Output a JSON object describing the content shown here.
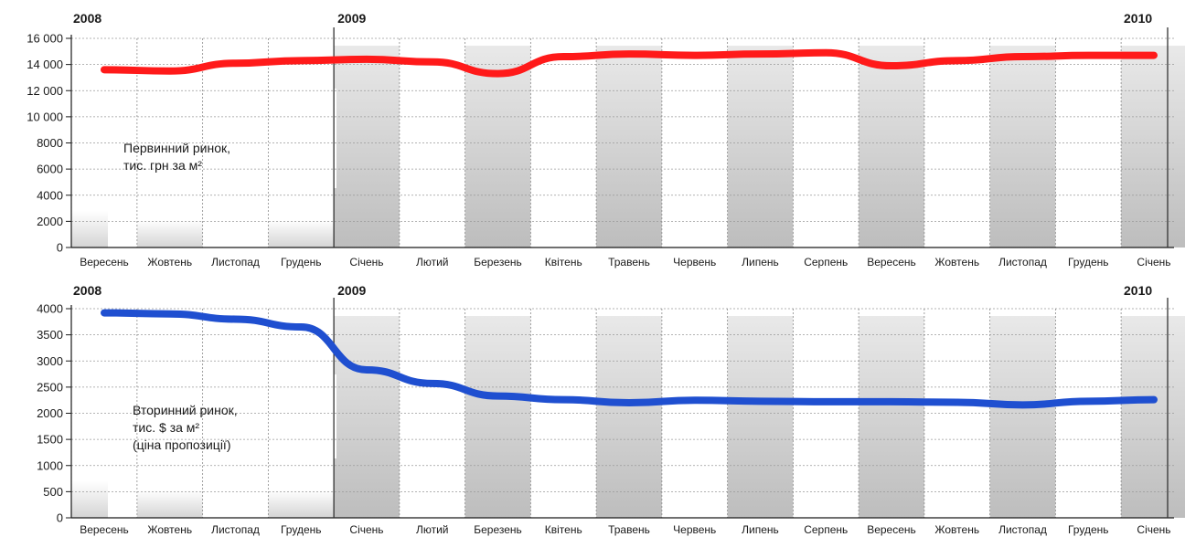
{
  "chart_data": [
    {
      "type": "line",
      "categories": [
        "Вересень",
        "Жовтень",
        "Листопад",
        "Грудень",
        "Січень",
        "Лютий",
        "Березень",
        "Квітень",
        "Травень",
        "Червень",
        "Липень",
        "Серпень",
        "Вересень",
        "Жовтень",
        "Листопад",
        "Грудень",
        "Січень"
      ],
      "year_labels": [
        {
          "label": "2008",
          "category_index": 0
        },
        {
          "label": "2009",
          "category_index": 4
        },
        {
          "label": "2010",
          "category_index": 16
        }
      ],
      "series": [
        {
          "values": [
            13600,
            13500,
            14100,
            14300,
            14400,
            14200,
            13300,
            14600,
            14800,
            14700,
            14800,
            14900,
            13900,
            14300,
            14600,
            14700,
            14700
          ],
          "color": "#ff1a1a"
        }
      ],
      "annotation_lines": [
        "Первинний ринок,",
        "тис. грн за м²"
      ],
      "y_ticks": [
        "16 000",
        "14 000",
        "12 000",
        "10 000",
        "8000",
        "6000",
        "4000",
        "2000",
        "0"
      ],
      "ylim": [
        0,
        16000
      ],
      "grid": true
    },
    {
      "type": "line",
      "categories": [
        "Вересень",
        "Жовтень",
        "Листопад",
        "Грудень",
        "Січень",
        "Лютий",
        "Березень",
        "Квітень",
        "Травень",
        "Червень",
        "Липень",
        "Серпень",
        "Вересень",
        "Жовтень",
        "Листопад",
        "Грудень",
        "Січень"
      ],
      "year_labels": [
        {
          "label": "2008",
          "category_index": 0
        },
        {
          "label": "2009",
          "category_index": 4
        },
        {
          "label": "2010",
          "category_index": 16
        }
      ],
      "series": [
        {
          "values": [
            3920,
            3900,
            3800,
            3650,
            2830,
            2570,
            2330,
            2260,
            2200,
            2250,
            2230,
            2220,
            2220,
            2210,
            2160,
            2230,
            2260
          ],
          "color": "#1f4fd0"
        }
      ],
      "annotation_lines": [
        "Вторинний ринок,",
        "тис. $ за м²",
        "(ціна пропозиції)"
      ],
      "y_ticks": [
        "4000",
        "3500",
        "3000",
        "2500",
        "2000",
        "1500",
        "1000",
        "500",
        "0"
      ],
      "ylim": [
        0,
        4000
      ],
      "grid": true
    }
  ]
}
